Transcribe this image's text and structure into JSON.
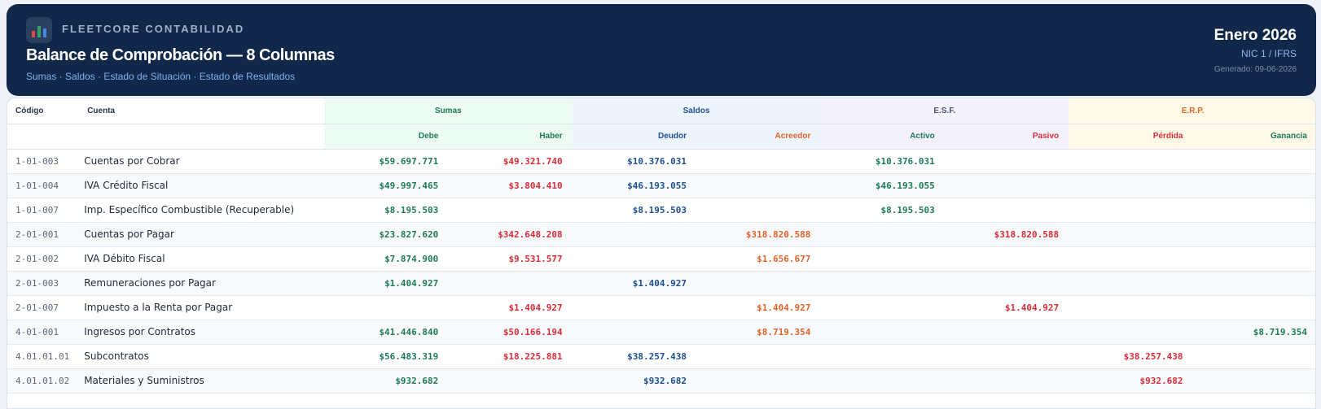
{
  "header": {
    "brand": "FLEETCORE CONTABILIDAD",
    "title": "Balance de Comprobación — 8 Columnas",
    "subtitle": "Sumas · Saldos · Estado de Situación · Estado de Resultados",
    "period": "Enero 2026",
    "norm": "NIC 1 / IFRS",
    "generated": "Generado: 09-06-2026",
    "logo_icon": "bar-chart-icon"
  },
  "table": {
    "col_code": "Código",
    "col_account": "Cuenta",
    "groups": {
      "sumas": "Sumas",
      "saldos": "Saldos",
      "esf": "E.S.F.",
      "erp": "E.R.P."
    },
    "subcols": {
      "debe": "Debe",
      "haber": "Haber",
      "deudor": "Deudor",
      "acreedor": "Acreedor",
      "activo": "Activo",
      "pasivo": "Pasivo",
      "perdida": "Pérdida",
      "ganancia": "Ganancia"
    },
    "rows": [
      {
        "code": "1-01-003",
        "account": "Cuentas por Cobrar",
        "debe": "$59.697.771",
        "haber": "$49.321.740",
        "deudor": "$10.376.031",
        "acreedor": "",
        "activo": "$10.376.031",
        "pasivo": "",
        "perdida": "",
        "ganancia": ""
      },
      {
        "code": "1-01-004",
        "account": "IVA Crédito Fiscal",
        "debe": "$49.997.465",
        "haber": "$3.804.410",
        "deudor": "$46.193.055",
        "acreedor": "",
        "activo": "$46.193.055",
        "pasivo": "",
        "perdida": "",
        "ganancia": ""
      },
      {
        "code": "1-01-007",
        "account": "Imp. Específico Combustible (Recuperable)",
        "debe": "$8.195.503",
        "haber": "",
        "deudor": "$8.195.503",
        "acreedor": "",
        "activo": "$8.195.503",
        "pasivo": "",
        "perdida": "",
        "ganancia": ""
      },
      {
        "code": "2-01-001",
        "account": "Cuentas por Pagar",
        "debe": "$23.827.620",
        "haber": "$342.648.208",
        "deudor": "",
        "acreedor": "$318.820.588",
        "activo": "",
        "pasivo": "$318.820.588",
        "perdida": "",
        "ganancia": ""
      },
      {
        "code": "2-01-002",
        "account": "IVA Débito Fiscal",
        "debe": "$7.874.900",
        "haber": "$9.531.577",
        "deudor": "",
        "acreedor": "$1.656.677",
        "activo": "",
        "pasivo": "",
        "perdida": "",
        "ganancia": ""
      },
      {
        "code": "2-01-003",
        "account": "Remuneraciones por Pagar",
        "debe": "$1.404.927",
        "haber": "",
        "deudor": "$1.404.927",
        "acreedor": "",
        "activo": "",
        "pasivo": "",
        "perdida": "",
        "ganancia": ""
      },
      {
        "code": "2-01-007",
        "account": "Impuesto a la Renta por Pagar",
        "debe": "",
        "haber": "$1.404.927",
        "deudor": "",
        "acreedor": "$1.404.927",
        "activo": "",
        "pasivo": "$1.404.927",
        "perdida": "",
        "ganancia": ""
      },
      {
        "code": "4-01-001",
        "account": "Ingresos por Contratos",
        "debe": "$41.446.840",
        "haber": "$50.166.194",
        "deudor": "",
        "acreedor": "$8.719.354",
        "activo": "",
        "pasivo": "",
        "perdida": "",
        "ganancia": "$8.719.354"
      },
      {
        "code": "4.01.01.01",
        "account": "Subcontratos",
        "debe": "$56.483.319",
        "haber": "$18.225.881",
        "deudor": "$38.257.438",
        "acreedor": "",
        "activo": "",
        "pasivo": "",
        "perdida": "$38.257.438",
        "ganancia": ""
      },
      {
        "code": "4.01.01.02",
        "account": "Materiales y Suministros",
        "debe": "$932.682",
        "haber": "",
        "deudor": "$932.682",
        "acreedor": "",
        "activo": "",
        "pasivo": "",
        "perdida": "$932.682",
        "ganancia": ""
      }
    ]
  },
  "colors": {
    "header_bg": "#12284a",
    "green": "#1f7a57",
    "red": "#d92e3a",
    "blue": "#1d4f91",
    "orange": "#e0642a"
  }
}
